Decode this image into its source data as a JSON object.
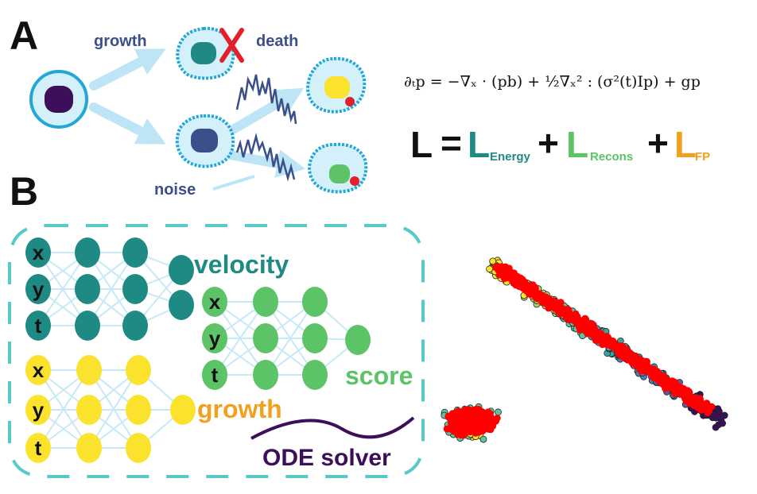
{
  "panels": {
    "a": "A",
    "b": "B"
  },
  "processes": {
    "growth": "growth",
    "death": "death",
    "noise": "noise"
  },
  "equation_pde": "∂ₜp = −∇ₓ · (pb) + ½∇ₓ² : (σ²(t)Ip) + gp",
  "loss": {
    "lhs": "L",
    "equals": "=",
    "plus1": "+",
    "plus2": "+",
    "term1": "L",
    "sub1": "Energy",
    "term2": "L",
    "sub2": "Recons",
    "term3": "L",
    "sub3": "FP"
  },
  "networks": {
    "velocity": {
      "title": "velocity",
      "inputs": [
        "x",
        "y",
        "t"
      ]
    },
    "score": {
      "title": "score",
      "inputs": [
        "x",
        "y",
        "t"
      ]
    },
    "growth": {
      "title": "growth",
      "inputs": [
        "x",
        "y",
        "t"
      ]
    }
  },
  "ode_solver": "ODE solver",
  "colors": {
    "velocity": "#1f8a83",
    "score": "#5cc466",
    "growth_nodes": "#fbe32d",
    "growth_text": "#f2a01f",
    "trajectory": "#ff0000",
    "cell_fill": "#d4f0fb",
    "cell_border": "#22a7d6",
    "arrow": "#bde5f6",
    "dashed_box": "#57c9c9"
  },
  "icons": [
    "death-x-icon",
    "dividing-cell-icon",
    "stochastic-path-icon"
  ]
}
